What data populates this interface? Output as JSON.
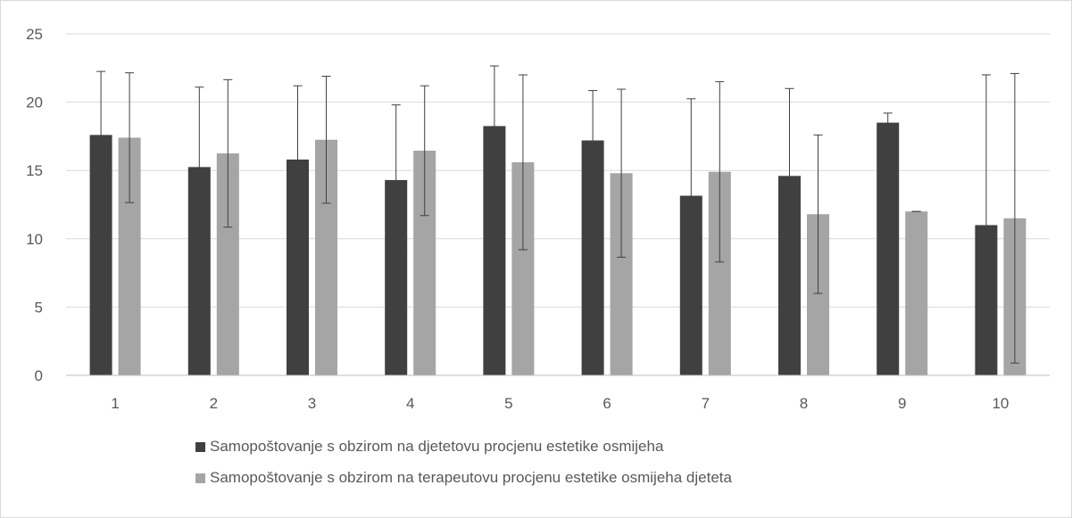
{
  "chart_data": {
    "type": "bar",
    "title": "",
    "xlabel": "",
    "ylabel": "",
    "categories": [
      "1",
      "2",
      "3",
      "4",
      "5",
      "6",
      "7",
      "8",
      "9",
      "10"
    ],
    "ylim": [
      0,
      25
    ],
    "yticks": [
      "0",
      "5",
      "10",
      "15",
      "20",
      "25"
    ],
    "grid": true,
    "legend_position": "bottom",
    "error_bars": true,
    "series": [
      {
        "name": "Samopoštovanje s obzirom na djetetovu procjenu estetike osmijeha",
        "color": "#404040",
        "values": [
          17.6,
          15.25,
          15.8,
          14.3,
          18.25,
          17.2,
          13.15,
          14.6,
          18.5,
          11.0
        ],
        "error": [
          4.65,
          5.85,
          5.4,
          5.5,
          4.4,
          3.65,
          7.1,
          6.4,
          0.7,
          11.0
        ]
      },
      {
        "name": "Samopoštovanje s obzirom na terapeutovu procjenu estetike osmijeha djeteta",
        "color": "#a5a5a5",
        "values": [
          17.4,
          16.25,
          17.25,
          16.45,
          15.6,
          14.8,
          14.9,
          11.8,
          12.0,
          11.5
        ],
        "error": [
          4.75,
          5.4,
          4.65,
          4.75,
          6.4,
          6.15,
          6.6,
          5.8,
          0.0,
          10.6
        ]
      }
    ]
  }
}
